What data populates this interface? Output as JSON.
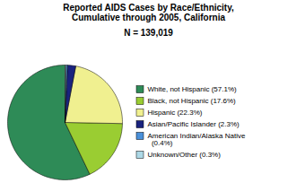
{
  "chart_data": {
    "type": "pie",
    "title": "Reported AIDS Cases by Race/Ethnicity,\nCumulative through 2005, California",
    "subtitle": "N = 139,019",
    "categories": [
      "White, not Hispanic (57.1%)",
      "Black, not Hispanic (17.6%)",
      "Hispanic (22.3%)",
      "Asian/Pacific Islander (2.3%)",
      "American Indian/Alaska Native\n  (0.4%)",
      "Unknown/Other (0.3%)"
    ],
    "values": [
      57.1,
      17.6,
      22.3,
      2.3,
      0.4,
      0.3
    ],
    "colors": [
      "#2e8b57",
      "#9acd32",
      "#f0f090",
      "#1a237e",
      "#4a90d9",
      "#add8e6"
    ],
    "legend": "right"
  }
}
